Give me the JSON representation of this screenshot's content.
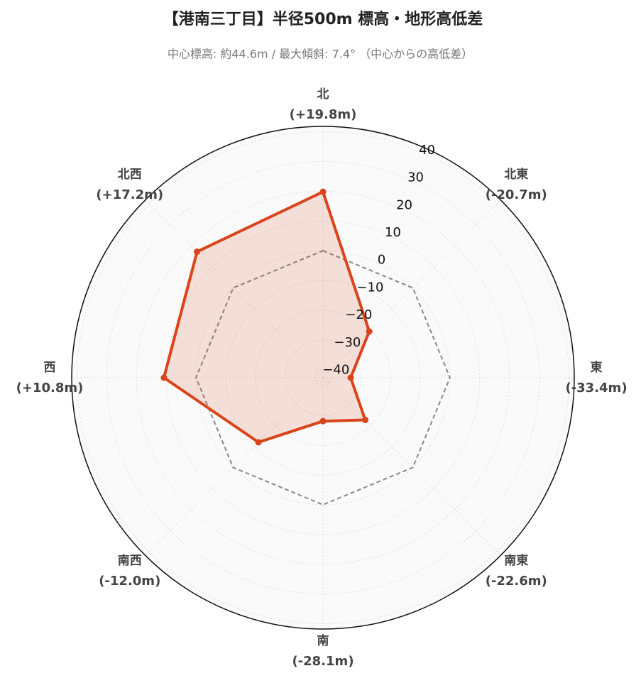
{
  "chart_data": {
    "type": "radar",
    "title": "【港南三丁目】半径500m 標高・地形高低差",
    "subtitle": "中心標高: 約44.6m / 最大傾斜: 7.4° （中心からの高低差）",
    "categories": [
      "北",
      "北東",
      "東",
      "南東",
      "南",
      "南西",
      "西",
      "北西"
    ],
    "series": [
      {
        "color": "#888888",
        "dashed": true,
        "fill": false,
        "values": [
          0,
          0,
          0,
          0,
          0,
          0,
          0,
          0
        ]
      },
      {
        "color": "#d9441a",
        "dashed": false,
        "fill": true,
        "values": [
          19.8,
          -20.7,
          -33.4,
          -22.6,
          -28.1,
          -12.0,
          10.8,
          17.2
        ],
        "value_labels": [
          "(+19.8m)",
          "(-20.7m)",
          "(-33.4m)",
          "(-22.6m)",
          "(-28.1m)",
          "(-12.0m)",
          "(+10.8m)",
          "(+17.2m)"
        ]
      }
    ],
    "ylim": [
      -42.7,
      41.8
    ],
    "yticks": [
      {
        "value": -40,
        "label": "−40"
      },
      {
        "value": -30,
        "label": "−30"
      },
      {
        "value": -20,
        "label": "−20"
      },
      {
        "value": -10,
        "label": "−10"
      },
      0,
      10,
      20,
      30,
      40
    ],
    "grid": true
  }
}
